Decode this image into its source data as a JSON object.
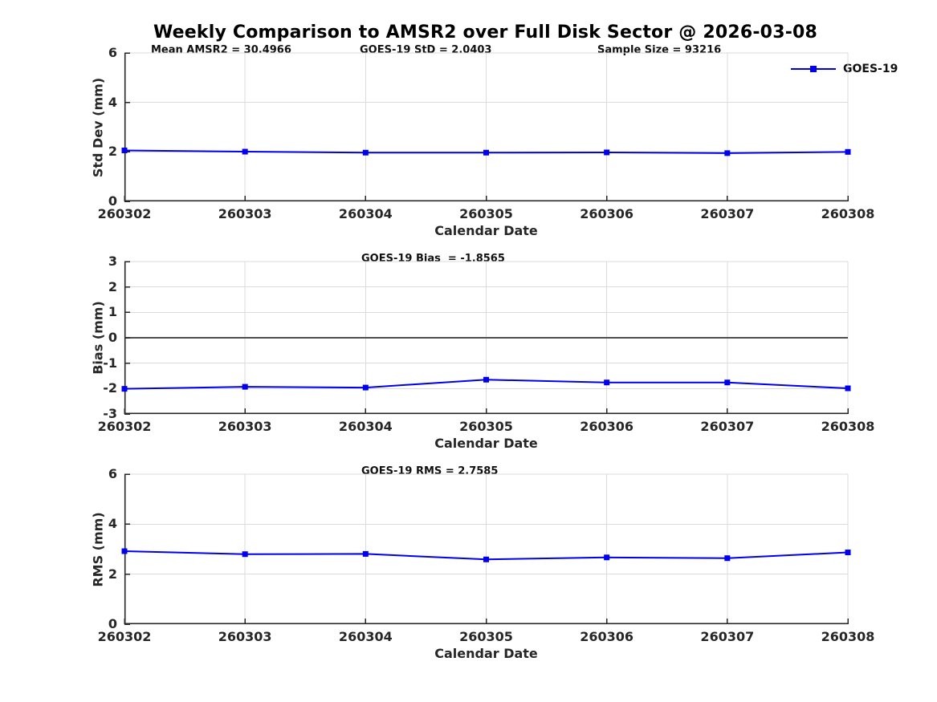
{
  "title": "Weekly Comparison to AMSR2 over Full Disk Sector @ 2026-03-08",
  "legend": {
    "label": "GOES-19",
    "color": "#0000EE",
    "marker": "filled-square"
  },
  "colors": {
    "series": "#0000EE",
    "grid": "#DBDBDB",
    "axis": "#262626",
    "zero_line": "#4D4D4D"
  },
  "chart_data": [
    {
      "type": "line",
      "title": "",
      "annotations": [
        "Mean AMSR2 = 30.4966",
        "GOES-19 StD = 2.0403",
        "Sample Size = 93216"
      ],
      "categories": [
        "260302",
        "260303",
        "260304",
        "260305",
        "260306",
        "260307",
        "260308"
      ],
      "series": [
        {
          "name": "GOES-19",
          "values": [
            2.06,
            2.01,
            1.97,
            1.97,
            1.98,
            1.95,
            2.0
          ]
        }
      ],
      "xlabel": "Calendar Date",
      "ylabel": "Std Dev (mm)",
      "ylim": [
        0,
        6
      ],
      "yticks": [
        0,
        2,
        4,
        6
      ],
      "grid": true,
      "zero_line": false,
      "legend_position": "top-right-outside"
    },
    {
      "type": "line",
      "title": "",
      "annotations": [
        "GOES-19 Bias  = -1.8565"
      ],
      "categories": [
        "260302",
        "260303",
        "260304",
        "260305",
        "260306",
        "260307",
        "260308"
      ],
      "series": [
        {
          "name": "GOES-19",
          "values": [
            -2.01,
            -1.93,
            -1.96,
            -1.65,
            -1.76,
            -1.76,
            -1.99
          ]
        }
      ],
      "xlabel": "Calendar Date",
      "ylabel": "Bias (mm)",
      "ylim": [
        -3,
        3
      ],
      "yticks": [
        -3,
        -2,
        -1,
        0,
        1,
        2,
        3
      ],
      "grid": true,
      "zero_line": true,
      "legend_position": "none"
    },
    {
      "type": "line",
      "title": "",
      "annotations": [
        "GOES-19 RMS = 2.7585"
      ],
      "categories": [
        "260302",
        "260303",
        "260304",
        "260305",
        "260306",
        "260307",
        "260308"
      ],
      "series": [
        {
          "name": "GOES-19",
          "values": [
            2.92,
            2.8,
            2.81,
            2.59,
            2.67,
            2.64,
            2.87
          ]
        }
      ],
      "xlabel": "Calendar Date",
      "ylabel": "RMS (mm)",
      "ylim": [
        0,
        6
      ],
      "yticks": [
        0,
        2,
        4,
        6
      ],
      "grid": true,
      "zero_line": false,
      "legend_position": "none"
    }
  ]
}
